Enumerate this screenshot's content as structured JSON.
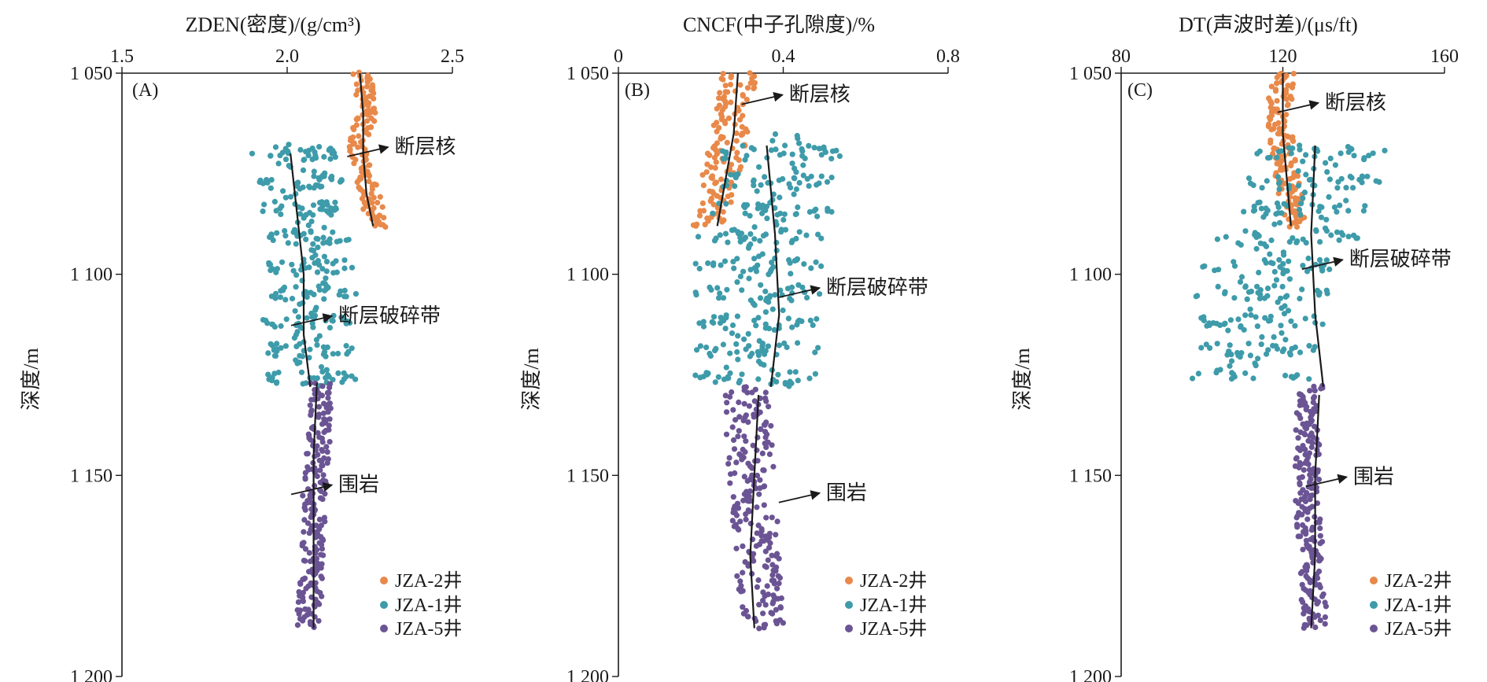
{
  "colors": {
    "JZA-2": "#E8894A",
    "JZA-1": "#3E9BAA",
    "JZA-5": "#6B5494",
    "axis": "#1a1a1a"
  },
  "chart_data": [
    {
      "type": "scatter",
      "panel_label": "(A)",
      "title": "ZDEN(密度)/(g/cm³)",
      "xlabel": "ZDEN(密度)/(g/cm³)",
      "ylabel": "深度/m",
      "xlim": [
        1.5,
        2.5
      ],
      "ylim": [
        1050,
        1200
      ],
      "x_inverted": false,
      "x_ticks": [
        "1.5",
        "2.0",
        "2.5"
      ],
      "y_ticks": [
        "1 050",
        "1 100",
        "1 150",
        "1 200"
      ],
      "legend": [
        "JZA-2井",
        "JZA-1井",
        "JZA-5井"
      ],
      "annotations": [
        {
          "text": "断层核",
          "depth": 1068,
          "x": 2.32
        },
        {
          "text": "断层破碎带",
          "depth": 1110,
          "x": 2.15
        },
        {
          "text": "围岩",
          "depth": 1152,
          "x": 2.15
        }
      ],
      "series": [
        {
          "name": "JZA-2井",
          "depth": [
            1050,
            1060,
            1070,
            1080,
            1088
          ],
          "center": [
            2.23,
            2.24,
            2.21,
            2.25,
            2.27
          ],
          "spread": 0.06
        },
        {
          "name": "JZA-1井",
          "depth": [
            1068,
            1080,
            1092,
            1104,
            1116,
            1128
          ],
          "center": [
            2.03,
            2.04,
            2.06,
            2.07,
            2.06,
            2.08
          ],
          "spread": 0.14
        },
        {
          "name": "JZA-5井",
          "depth": [
            1127,
            1140,
            1155,
            1170,
            1188
          ],
          "center": [
            2.1,
            2.1,
            2.08,
            2.08,
            2.06
          ],
          "spread": 0.07
        }
      ],
      "trend_lines": [
        {
          "series": "JZA-2井",
          "depth": [
            1050,
            1060,
            1070,
            1080,
            1088
          ],
          "x": [
            2.22,
            2.23,
            2.23,
            2.24,
            2.26
          ]
        },
        {
          "series": "JZA-1井",
          "depth": [
            1070,
            1085,
            1100,
            1115,
            1128
          ],
          "x": [
            2.01,
            2.03,
            2.05,
            2.05,
            2.07
          ]
        },
        {
          "series": "JZA-5井",
          "depth": [
            1127,
            1145,
            1165,
            1188
          ],
          "x": [
            2.09,
            2.08,
            2.08,
            2.08
          ]
        }
      ]
    },
    {
      "type": "scatter",
      "panel_label": "(B)",
      "title": "CNCF(中子孔隙度)/%",
      "xlabel": "CNCF(中子孔隙度)/%",
      "ylabel": "深度/m",
      "xlim": [
        0,
        0.8
      ],
      "ylim": [
        1050,
        1200
      ],
      "x_inverted": false,
      "x_ticks": [
        "0",
        "0.4",
        "0.8"
      ],
      "y_ticks": [
        "1 050",
        "1 100",
        "1 150",
        "1 200"
      ],
      "legend": [
        "JZA-2井",
        "JZA-1井",
        "JZA-5井"
      ],
      "annotations": [
        {
          "text": "断层核",
          "depth": 1055,
          "x": 0.41
        },
        {
          "text": "断层破碎带",
          "depth": 1103,
          "x": 0.5
        },
        {
          "text": "围岩",
          "depth": 1154,
          "x": 0.5
        }
      ],
      "series": [
        {
          "name": "JZA-2井",
          "depth": [
            1050,
            1060,
            1070,
            1080,
            1088
          ],
          "center": [
            0.29,
            0.28,
            0.26,
            0.24,
            0.22
          ],
          "spread": 0.09
        },
        {
          "name": "JZA-1井",
          "depth": [
            1065,
            1080,
            1095,
            1110,
            1128
          ],
          "center": [
            0.39,
            0.38,
            0.34,
            0.34,
            0.33
          ],
          "spread": 0.16
        },
        {
          "name": "JZA-5井",
          "depth": [
            1128,
            1145,
            1160,
            1175,
            1188
          ],
          "center": [
            0.31,
            0.32,
            0.33,
            0.34,
            0.35
          ],
          "spread": 0.11
        }
      ],
      "trend_lines": [
        {
          "series": "JZA-2井",
          "depth": [
            1050,
            1065,
            1088
          ],
          "x": [
            0.29,
            0.28,
            0.24
          ]
        },
        {
          "series": "JZA-1井",
          "depth": [
            1068,
            1090,
            1110,
            1128
          ],
          "x": [
            0.36,
            0.38,
            0.39,
            0.37
          ]
        },
        {
          "series": "JZA-5井",
          "depth": [
            1130,
            1150,
            1170,
            1188
          ],
          "x": [
            0.34,
            0.33,
            0.32,
            0.33
          ]
        }
      ]
    },
    {
      "type": "scatter",
      "panel_label": "(C)",
      "title": "DT(声波时差)/(μs/ft)",
      "xlabel": "DT(声波时差)/(μs/ft)",
      "ylabel": "深度/m",
      "xlim": [
        80,
        160
      ],
      "ylim": [
        1050,
        1200
      ],
      "x_inverted": false,
      "x_ticks": [
        "80",
        "120",
        "160"
      ],
      "y_ticks": [
        "1 050",
        "1 100",
        "1 150",
        "1 200"
      ],
      "legend": [
        "JZA-2井",
        "JZA-1井",
        "JZA-5井"
      ],
      "annotations": [
        {
          "text": "断层核",
          "depth": 1057,
          "x": 130
        },
        {
          "text": "断层破碎带",
          "depth": 1096,
          "x": 136
        },
        {
          "text": "围岩",
          "depth": 1150,
          "x": 137
        }
      ],
      "series": [
        {
          "name": "JZA-2井",
          "depth": [
            1050,
            1060,
            1070,
            1080,
            1088
          ],
          "center": [
            120,
            119,
            120,
            122,
            123
          ],
          "spread": 6
        },
        {
          "name": "JZA-1井",
          "depth": [
            1068,
            1082,
            1096,
            1110,
            1126
          ],
          "center": [
            129,
            127,
            118,
            114,
            112
          ],
          "spread": 18
        },
        {
          "name": "JZA-5井",
          "depth": [
            1128,
            1140,
            1155,
            1170,
            1188
          ],
          "center": [
            127,
            126,
            126,
            127,
            128
          ],
          "spread": 6
        }
      ],
      "trend_lines": [
        {
          "series": "JZA-2井",
          "depth": [
            1050,
            1065,
            1088
          ],
          "x": [
            120,
            120,
            122
          ]
        },
        {
          "series": "JZA-1井",
          "depth": [
            1068,
            1090,
            1110,
            1128
          ],
          "x": [
            128,
            127,
            128,
            130
          ]
        },
        {
          "series": "JZA-5井",
          "depth": [
            1130,
            1150,
            1170,
            1188
          ],
          "x": [
            129,
            128,
            128,
            127
          ]
        }
      ]
    }
  ]
}
